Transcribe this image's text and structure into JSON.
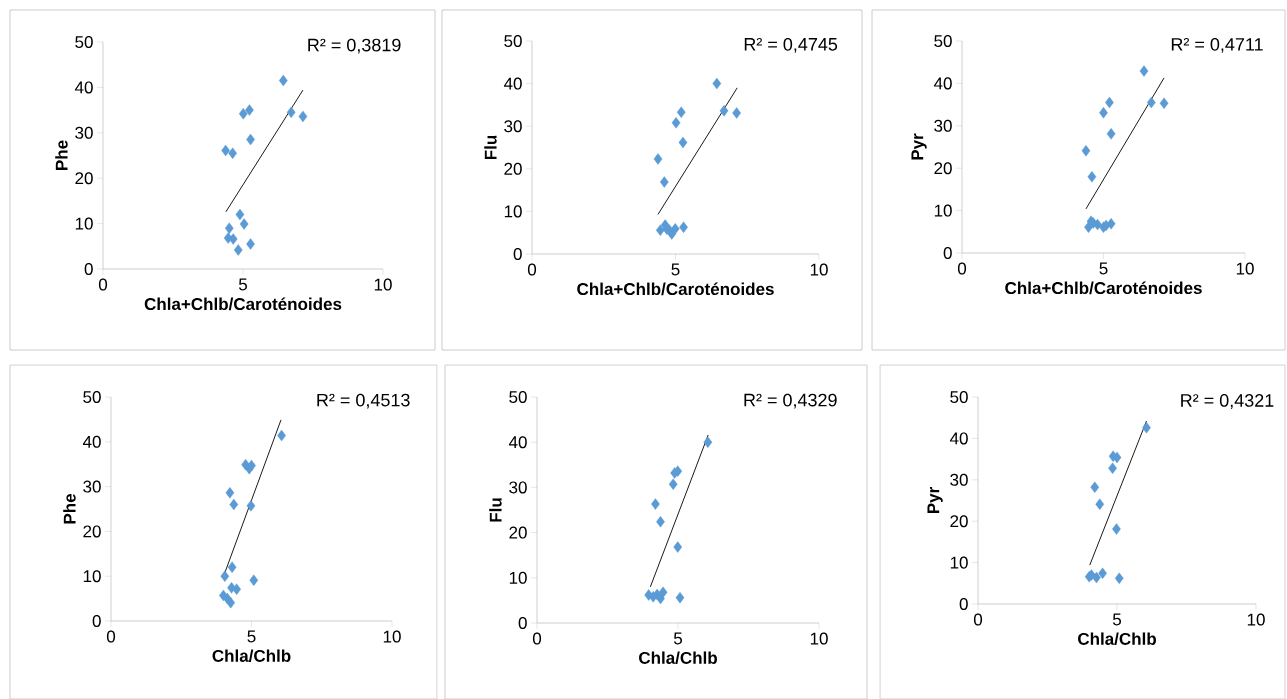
{
  "chart_data": [
    {
      "type": "scatter",
      "xlabel": "Chla+Chlb/Caroténoides",
      "ylabel": "Phe",
      "xlim": [
        0,
        10
      ],
      "ylim": [
        0,
        50
      ],
      "xticks": [
        0,
        5,
        10
      ],
      "yticks": [
        0,
        10,
        20,
        30,
        40,
        50
      ],
      "grid": false,
      "marker": "diamond",
      "annotations": [
        "R² = 0,3819"
      ],
      "series": [
        {
          "color": "#5b9bd5",
          "x": [
            6.44,
            6.72,
            7.14,
            5.01,
            5.23,
            5.27,
            4.38,
            4.63,
            4.89,
            5.04,
            4.51,
            4.47,
            4.65,
            4.83,
            5.27
          ],
          "values": [
            41.5,
            34.5,
            33.6,
            34.2,
            35.0,
            28.5,
            26.1,
            25.5,
            12.0,
            9.9,
            9.0,
            6.8,
            6.6,
            4.2,
            5.5
          ]
        },
        {
          "type": "line",
          "color": "#000000",
          "marker": "none",
          "x": [
            4.39,
            7.14
          ],
          "values": [
            12.6,
            39.4
          ]
        }
      ]
    },
    {
      "type": "scatter",
      "xlabel": "Chla+Chlb/Caroténoides",
      "ylabel": "Flu",
      "xlim": [
        0,
        10
      ],
      "ylim": [
        0,
        50
      ],
      "xticks": [
        0,
        5,
        10
      ],
      "yticks": [
        0,
        10,
        20,
        30,
        40,
        50
      ],
      "grid": false,
      "marker": "diamond",
      "annotations": [
        "R² = 0,4745"
      ],
      "series": [
        {
          "color": "#5b9bd5",
          "x": [
            6.44,
            6.69,
            7.13,
            5.2,
            5.02,
            5.26,
            4.39,
            4.61,
            4.47,
            4.64,
            4.87,
            4.99,
            5.28,
            4.7,
            4.79
          ],
          "values": [
            40.0,
            33.6,
            33.1,
            33.3,
            30.8,
            26.2,
            22.3,
            16.9,
            5.6,
            6.8,
            4.7,
            5.9,
            6.3,
            5.8,
            5.6
          ]
        },
        {
          "type": "line",
          "color": "#000000",
          "marker": "none",
          "x": [
            4.39,
            7.15
          ],
          "values": [
            9.3,
            39.0
          ]
        }
      ]
    },
    {
      "type": "scatter",
      "xlabel": "Chla+Chlb/Caroténoides",
      "ylabel": "Pyr",
      "xlim": [
        0,
        10
      ],
      "ylim": [
        0,
        50
      ],
      "xticks": [
        0,
        5,
        10
      ],
      "yticks": [
        0,
        10,
        20,
        30,
        40,
        50
      ],
      "grid": false,
      "marker": "diamond",
      "annotations": [
        "R² = 0,4711"
      ],
      "series": [
        {
          "color": "#5b9bd5",
          "x": [
            6.43,
            6.69,
            7.14,
            5.21,
            5.0,
            5.27,
            4.38,
            4.59,
            4.47,
            4.56,
            4.79,
            5.0,
            5.27,
            4.64,
            5.09
          ],
          "values": [
            42.9,
            35.5,
            35.3,
            35.5,
            33.1,
            28.1,
            24.1,
            18.0,
            6.1,
            7.5,
            6.7,
            6.1,
            6.9,
            7.1,
            6.5
          ]
        },
        {
          "type": "line",
          "color": "#000000",
          "marker": "none",
          "x": [
            4.38,
            7.14
          ],
          "values": [
            10.4,
            41.3
          ]
        }
      ]
    },
    {
      "type": "scatter",
      "xlabel": "Chla/Chlb",
      "ylabel": "Phe",
      "xlim": [
        0,
        10
      ],
      "ylim": [
        0,
        50
      ],
      "xticks": [
        0,
        5,
        10
      ],
      "yticks": [
        0,
        10,
        20,
        30,
        40,
        50
      ],
      "grid": false,
      "marker": "diamond",
      "annotations": [
        "R² = 0,4513"
      ],
      "series": [
        {
          "color": "#5b9bd5",
          "x": [
            6.07,
            4.79,
            4.92,
            5.0,
            4.23,
            4.37,
            4.98,
            4.31,
            4.05,
            5.08,
            4.47,
            4.29,
            4.0,
            4.14,
            4.26
          ],
          "values": [
            41.4,
            34.9,
            34.0,
            34.7,
            28.6,
            26.0,
            25.7,
            12.0,
            10.0,
            9.1,
            7.1,
            7.4,
            5.7,
            5.0,
            4.1
          ]
        },
        {
          "type": "line",
          "color": "#000000",
          "marker": "none",
          "x": [
            4.03,
            6.05
          ],
          "values": [
            10.4,
            44.9
          ]
        }
      ]
    },
    {
      "type": "scatter",
      "xlabel": "Chla/Chlb",
      "ylabel": "Flu",
      "xlim": [
        0,
        10
      ],
      "ylim": [
        0,
        50
      ],
      "xticks": [
        0,
        5,
        10
      ],
      "yticks": [
        0,
        10,
        20,
        30,
        40,
        50
      ],
      "grid": false,
      "marker": "diamond",
      "annotations": [
        "R² = 0,4329"
      ],
      "series": [
        {
          "color": "#5b9bd5",
          "x": [
            6.06,
            4.88,
            4.99,
            4.83,
            4.2,
            4.38,
            4.99,
            5.07,
            3.96,
            4.12,
            4.47,
            4.26,
            4.38
          ],
          "values": [
            40.0,
            33.2,
            33.6,
            30.7,
            26.3,
            22.4,
            16.8,
            5.6,
            6.2,
            5.8,
            6.8,
            6.3,
            5.4
          ]
        },
        {
          "type": "line",
          "color": "#000000",
          "marker": "none",
          "x": [
            4.02,
            6.07
          ],
          "values": [
            8.0,
            41.6
          ]
        }
      ]
    },
    {
      "type": "scatter",
      "xlabel": "Chla/Chlb",
      "ylabel": "Pyr",
      "xlim": [
        0,
        10
      ],
      "ylim": [
        0,
        50
      ],
      "xticks": [
        0,
        5,
        10
      ],
      "yticks": [
        0,
        10,
        20,
        30,
        40,
        50
      ],
      "grid": false,
      "marker": "diamond",
      "annotations": [
        "R² = 0,4321"
      ],
      "series": [
        {
          "color": "#5b9bd5",
          "x": [
            6.06,
            4.86,
            5.0,
            4.84,
            4.2,
            4.38,
            4.98,
            5.08,
            4.0,
            4.26,
            4.48,
            4.08
          ],
          "values": [
            42.6,
            35.7,
            35.4,
            32.8,
            28.2,
            24.1,
            18.1,
            6.2,
            6.6,
            6.4,
            7.4,
            7.0
          ]
        },
        {
          "type": "line",
          "color": "#000000",
          "marker": "none",
          "x": [
            4.02,
            6.06
          ],
          "values": [
            9.4,
            44.2
          ]
        }
      ]
    }
  ]
}
